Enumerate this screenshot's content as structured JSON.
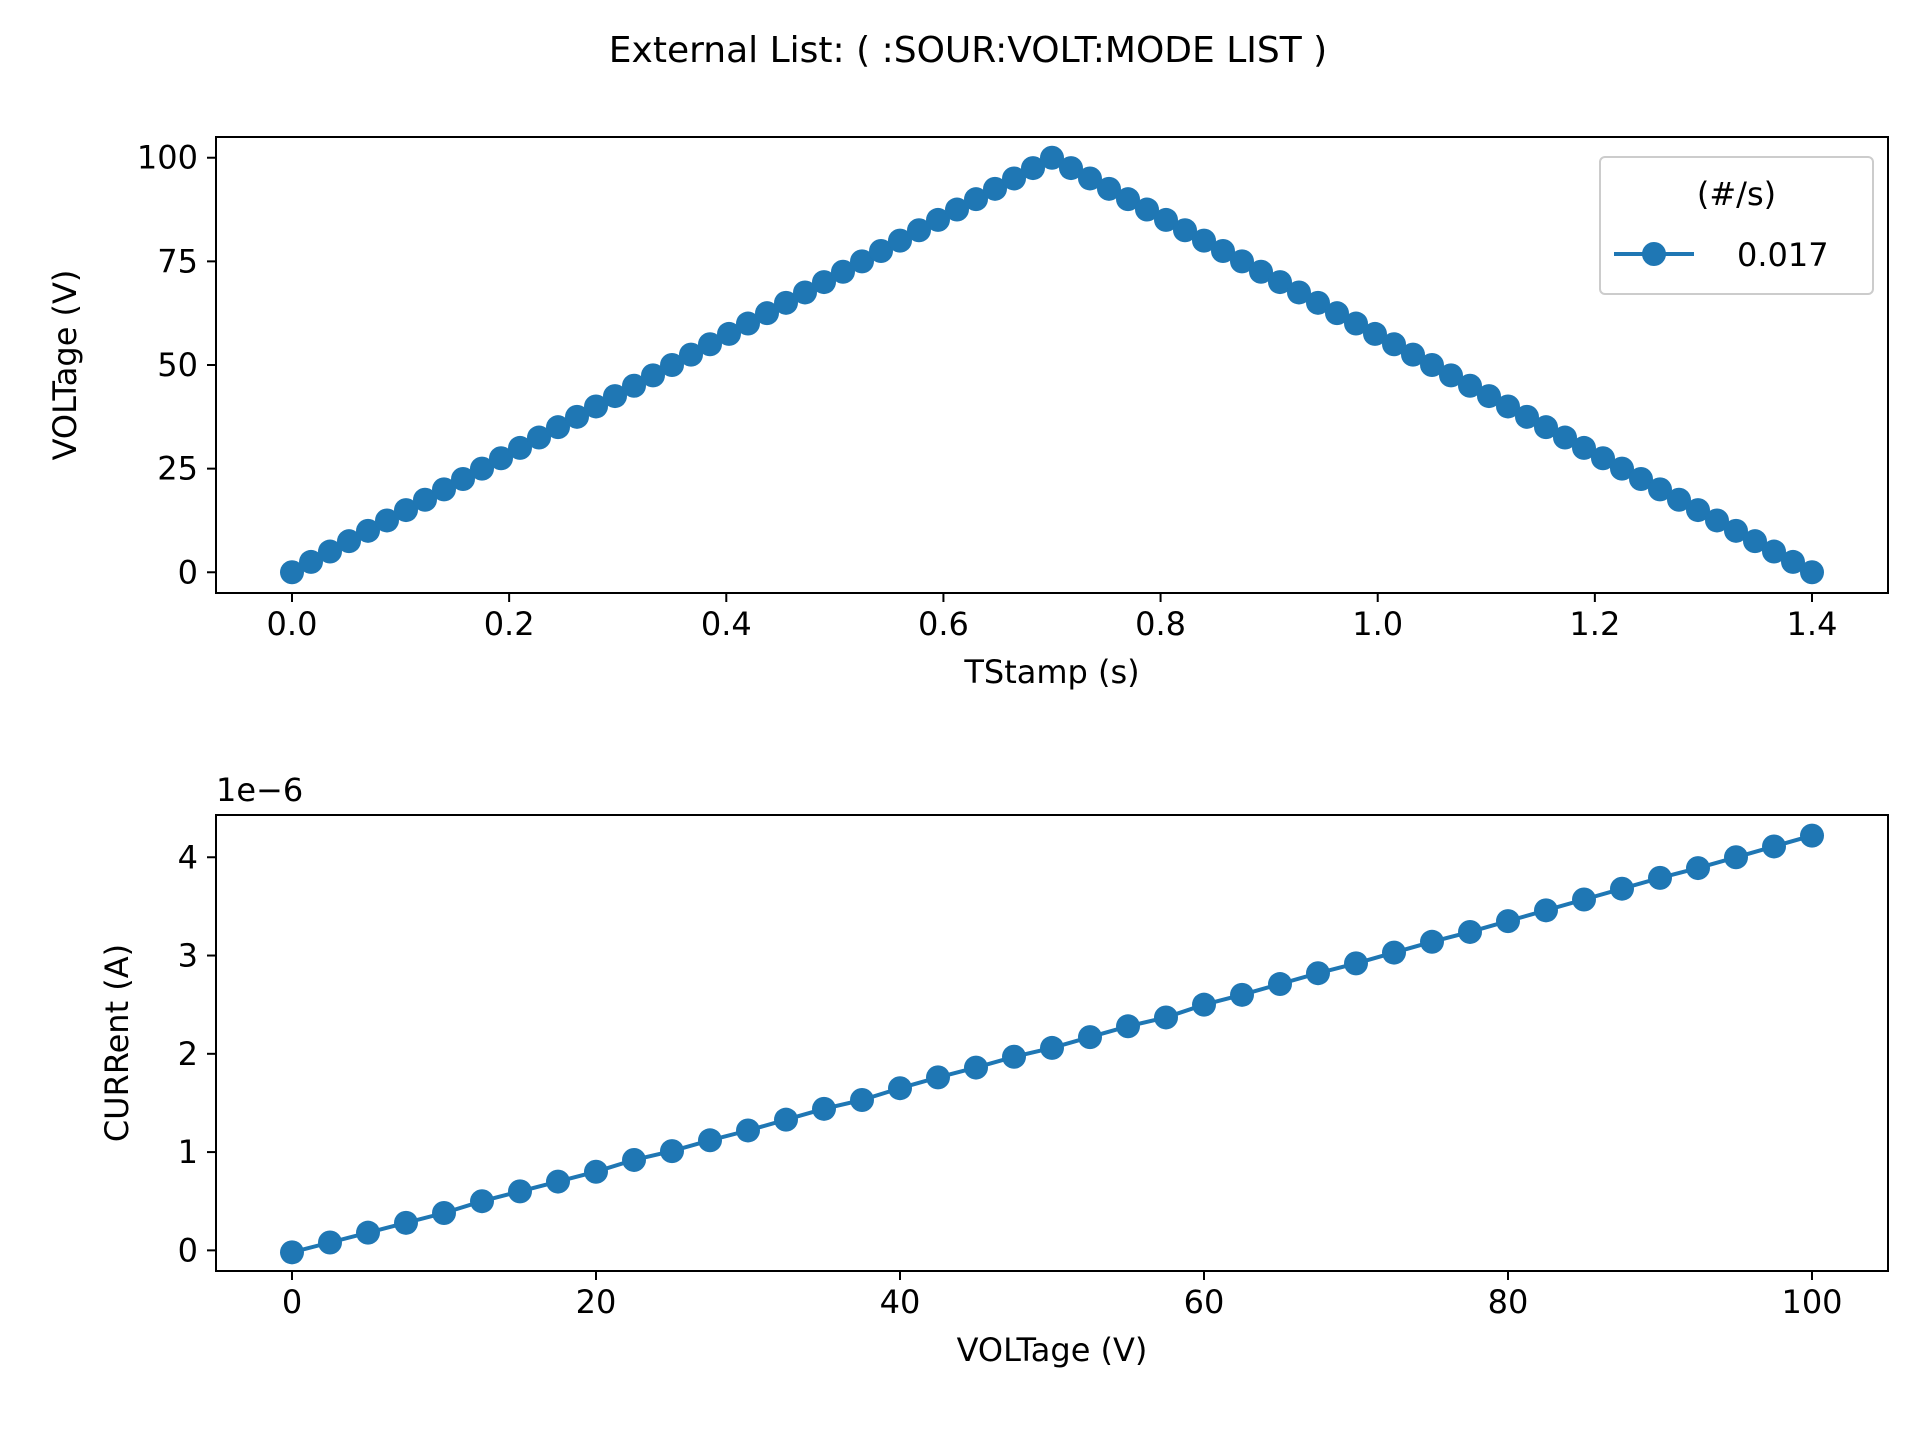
{
  "title": "External List: ( :SOUR:VOLT:MODE LIST )",
  "colors": {
    "series": "#1f77b4",
    "axes": "#000000",
    "legend_border": "#cccccc"
  },
  "chart_data": [
    {
      "type": "line",
      "xlabel": "TStamp (s)",
      "ylabel": "VOLTage (V)",
      "xlim": [
        -0.07,
        1.47
      ],
      "ylim": [
        -5,
        105
      ],
      "xticks": [
        "0.0",
        "0.2",
        "0.4",
        "0.6",
        "0.8",
        "1.0",
        "1.2",
        "1.4"
      ],
      "xtick_values": [
        0,
        0.2,
        0.4,
        0.6,
        0.8,
        1.0,
        1.2,
        1.4
      ],
      "yticks": [
        "0",
        "25",
        "50",
        "75",
        "100"
      ],
      "ytick_values": [
        0,
        25,
        50,
        75,
        100
      ],
      "grid": false,
      "legend": {
        "title": "(#/s)",
        "position": "top-right"
      },
      "series": [
        {
          "name": "0.017",
          "marker": "circle",
          "x": [
            0.0,
            0.0175,
            0.035,
            0.0525,
            0.07,
            0.0875,
            0.105,
            0.1225,
            0.14,
            0.1575,
            0.175,
            0.1925,
            0.21,
            0.2275,
            0.245,
            0.2625,
            0.28,
            0.2975,
            0.315,
            0.3325,
            0.35,
            0.3675,
            0.385,
            0.4025,
            0.42,
            0.4375,
            0.455,
            0.4725,
            0.49,
            0.5075,
            0.525,
            0.5425,
            0.56,
            0.5775,
            0.595,
            0.6125,
            0.63,
            0.6475,
            0.665,
            0.6825,
            0.7,
            0.7175,
            0.735,
            0.7525,
            0.77,
            0.7875,
            0.805,
            0.8225,
            0.84,
            0.8575,
            0.875,
            0.8925,
            0.91,
            0.9275,
            0.945,
            0.9625,
            0.98,
            0.9975,
            1.015,
            1.0325,
            1.05,
            1.0675,
            1.085,
            1.1025,
            1.12,
            1.1375,
            1.155,
            1.1725,
            1.19,
            1.2075,
            1.225,
            1.2425,
            1.26,
            1.2775,
            1.295,
            1.3125,
            1.33,
            1.3475,
            1.365,
            1.3825,
            1.4
          ],
          "y": [
            0,
            2.5,
            5,
            7.5,
            10,
            12.5,
            15,
            17.5,
            20,
            22.5,
            25,
            27.5,
            30,
            32.5,
            35,
            37.5,
            40,
            42.5,
            45,
            47.5,
            50,
            52.5,
            55,
            57.5,
            60,
            62.5,
            65,
            67.5,
            70,
            72.5,
            75,
            77.5,
            80,
            82.5,
            85,
            87.5,
            90,
            92.5,
            95,
            97.5,
            100,
            97.5,
            95,
            92.5,
            90,
            87.5,
            85,
            82.5,
            80,
            77.5,
            75,
            72.5,
            70,
            67.5,
            65,
            62.5,
            60,
            57.5,
            55,
            52.5,
            50,
            47.5,
            45,
            42.5,
            40,
            37.5,
            35,
            32.5,
            30,
            27.5,
            25,
            22.5,
            20,
            17.5,
            15,
            12.5,
            10,
            7.5,
            5,
            2.5,
            0
          ]
        }
      ]
    },
    {
      "type": "line",
      "xlabel": "VOLTage (V)",
      "ylabel": "CURRent (A)",
      "offset_text": "1e−6",
      "xlim": [
        -5,
        105
      ],
      "ylim": [
        -0.21,
        4.43
      ],
      "xticks": [
        "0",
        "20",
        "40",
        "60",
        "80",
        "100"
      ],
      "xtick_values": [
        0,
        20,
        40,
        60,
        80,
        100
      ],
      "yticks": [
        "0",
        "1",
        "2",
        "3",
        "4"
      ],
      "ytick_values": [
        0,
        1,
        2,
        3,
        4
      ],
      "grid": false,
      "series": [
        {
          "marker": "circle",
          "x": [
            0,
            2.5,
            5,
            7.5,
            10,
            12.5,
            15,
            17.5,
            20,
            22.5,
            25,
            27.5,
            30,
            32.5,
            35,
            37.5,
            40,
            42.5,
            45,
            47.5,
            50,
            52.5,
            55,
            57.5,
            60,
            62.5,
            65,
            67.5,
            70,
            72.5,
            75,
            77.5,
            80,
            82.5,
            85,
            87.5,
            90,
            92.5,
            95,
            97.5,
            100
          ],
          "y": [
            -0.02,
            0.08,
            0.18,
            0.28,
            0.38,
            0.5,
            0.6,
            0.7,
            0.8,
            0.92,
            1.01,
            1.12,
            1.22,
            1.33,
            1.44,
            1.53,
            1.65,
            1.76,
            1.86,
            1.97,
            2.06,
            2.17,
            2.28,
            2.37,
            2.5,
            2.6,
            2.71,
            2.82,
            2.92,
            3.03,
            3.14,
            3.24,
            3.35,
            3.46,
            3.57,
            3.68,
            3.79,
            3.89,
            4.0,
            4.11,
            4.22
          ]
        }
      ]
    }
  ]
}
